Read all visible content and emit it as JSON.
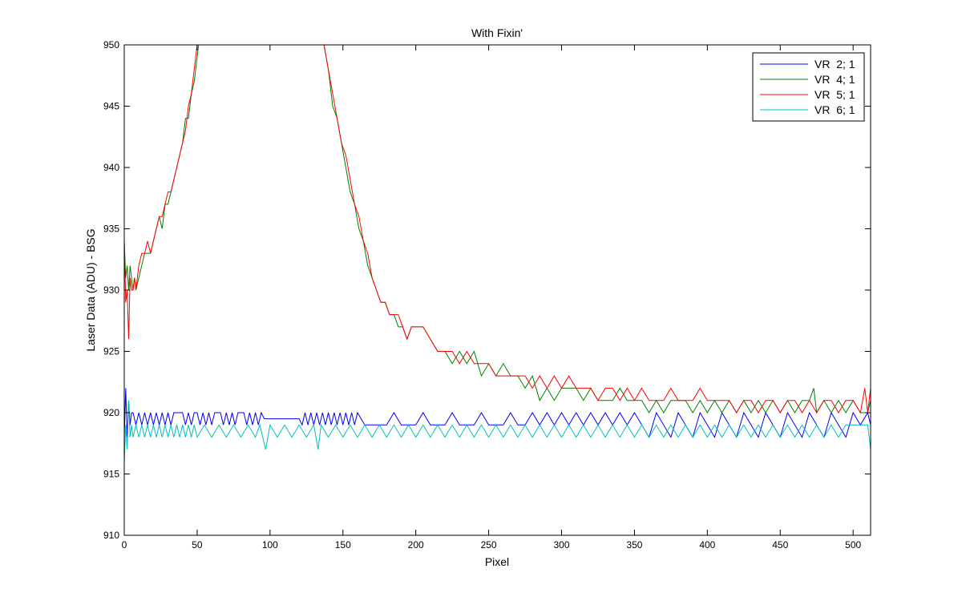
{
  "chart_data": {
    "type": "line",
    "title": "With Fixin'",
    "xlabel": "Pixel",
    "ylabel": "Laser Data (ADU) - BSG",
    "xlim": [
      0,
      512
    ],
    "ylim": [
      910,
      950
    ],
    "xticks": [
      0,
      50,
      100,
      150,
      200,
      250,
      300,
      350,
      400,
      450,
      500
    ],
    "yticks": [
      910,
      915,
      920,
      925,
      930,
      935,
      940,
      945,
      950
    ],
    "grid": false,
    "legend_position": "top-right",
    "series": [
      {
        "name": "VR  2; 1",
        "color": "#0000ff",
        "x": [
          0,
          1,
          2,
          3,
          4,
          5,
          6,
          8,
          10,
          12,
          14,
          16,
          18,
          20,
          22,
          24,
          26,
          28,
          30,
          32,
          34,
          36,
          38,
          40,
          42,
          44,
          46,
          48,
          50,
          52,
          54,
          56,
          58,
          60,
          62,
          64,
          66,
          68,
          70,
          72,
          74,
          76,
          78,
          80,
          82,
          84,
          86,
          88,
          90,
          92,
          94,
          96,
          100,
          105,
          110,
          115,
          120,
          122,
          124,
          126,
          128,
          130,
          132,
          134,
          136,
          138,
          140,
          142,
          144,
          146,
          148,
          150,
          152,
          154,
          156,
          158,
          160,
          165,
          170,
          175,
          180,
          185,
          190,
          195,
          200,
          205,
          210,
          215,
          220,
          225,
          230,
          235,
          240,
          245,
          250,
          255,
          260,
          265,
          270,
          275,
          280,
          285,
          290,
          295,
          300,
          305,
          310,
          315,
          320,
          325,
          330,
          335,
          340,
          345,
          350,
          355,
          360,
          365,
          370,
          375,
          380,
          385,
          390,
          395,
          400,
          405,
          410,
          415,
          420,
          425,
          430,
          435,
          440,
          445,
          450,
          455,
          460,
          465,
          470,
          475,
          480,
          485,
          490,
          495,
          500,
          505,
          510,
          512
        ],
        "y": [
          918,
          922,
          918,
          921,
          919,
          920,
          920,
          919,
          920,
          919,
          920,
          919,
          920,
          919,
          920,
          919,
          920,
          919,
          920,
          919,
          920,
          920,
          920,
          920,
          919,
          920,
          919,
          920,
          920,
          919,
          920,
          919,
          920,
          919,
          920,
          920,
          920,
          919,
          920,
          919,
          920,
          919,
          920,
          920,
          920,
          919,
          920,
          919,
          920,
          919,
          920,
          919.5,
          919.5,
          919.5,
          919.5,
          919.5,
          919.5,
          919,
          920,
          919,
          920,
          919,
          920,
          919,
          920,
          919,
          920,
          919,
          920,
          919,
          920,
          919,
          920,
          919,
          920,
          919,
          920,
          919,
          919,
          919,
          919,
          920,
          919,
          919,
          919,
          920,
          919,
          919,
          919,
          920,
          919,
          919,
          919,
          920,
          919,
          919,
          919,
          920,
          919,
          919,
          920,
          919,
          920,
          919,
          920,
          919,
          920,
          919,
          920,
          919,
          920,
          919,
          920,
          919,
          920,
          919,
          918,
          920,
          919,
          918,
          920,
          919,
          918,
          920,
          919,
          918,
          920,
          919,
          918,
          920,
          919,
          918,
          920,
          919,
          918,
          920,
          919,
          918,
          920,
          919,
          918,
          920,
          919,
          918,
          920,
          919,
          920,
          919
        ]
      },
      {
        "name": "VR  4; 1",
        "color": "#008000",
        "x": [
          0,
          1,
          2,
          3,
          4,
          5,
          6,
          7,
          8,
          10,
          12,
          14,
          16,
          18,
          20,
          22,
          24,
          26,
          28,
          30,
          32,
          34,
          36,
          38,
          40,
          42,
          44,
          46,
          48,
          50,
          51,
          137,
          140,
          143,
          146,
          149,
          152,
          155,
          158,
          161,
          164,
          167,
          170,
          173,
          176,
          179,
          182,
          185,
          188,
          191,
          194,
          197,
          200,
          205,
          210,
          215,
          220,
          225,
          230,
          235,
          240,
          245,
          250,
          255,
          260,
          265,
          270,
          275,
          280,
          285,
          290,
          295,
          300,
          305,
          310,
          315,
          320,
          325,
          330,
          335,
          340,
          345,
          350,
          355,
          360,
          365,
          370,
          375,
          380,
          385,
          390,
          395,
          400,
          405,
          410,
          415,
          420,
          425,
          430,
          435,
          440,
          445,
          450,
          455,
          460,
          465,
          470,
          473,
          475,
          480,
          485,
          490,
          495,
          500,
          505,
          510,
          512
        ],
        "y": [
          934,
          931,
          932,
          930,
          932,
          931,
          930,
          931,
          930,
          931,
          932,
          933,
          933,
          933,
          934,
          935,
          936,
          935,
          937,
          937,
          938,
          939,
          940,
          941,
          942,
          944,
          944,
          946,
          947,
          949,
          950,
          950,
          948,
          945,
          944,
          942,
          940,
          938,
          937,
          935,
          934,
          932,
          931,
          930,
          929,
          929,
          928,
          928,
          927,
          927,
          926,
          927,
          927,
          927,
          926,
          925,
          925,
          924,
          925,
          924,
          925,
          923,
          924,
          923,
          924,
          923,
          923,
          922,
          923,
          921,
          922,
          921,
          922,
          922,
          922,
          921,
          922,
          921,
          921,
          921,
          922,
          921,
          921,
          921,
          920,
          921,
          920,
          921,
          921,
          921,
          920,
          921,
          920,
          921,
          920,
          921,
          920,
          921,
          920,
          921,
          920,
          921,
          920,
          921,
          920,
          921,
          921,
          922,
          920,
          921,
          920,
          921,
          920,
          921,
          920,
          920,
          921
        ]
      },
      {
        "name": "VR  5; 1",
        "color": "#ff0000",
        "x": [
          0,
          1,
          2,
          3,
          4,
          5,
          6,
          7,
          8,
          10,
          12,
          14,
          16,
          18,
          20,
          22,
          24,
          26,
          28,
          30,
          32,
          34,
          36,
          38,
          40,
          42,
          44,
          46,
          48,
          50,
          51,
          137,
          140,
          143,
          146,
          149,
          152,
          155,
          158,
          161,
          164,
          167,
          170,
          173,
          176,
          179,
          182,
          185,
          188,
          191,
          194,
          197,
          200,
          205,
          210,
          215,
          220,
          225,
          230,
          235,
          240,
          245,
          250,
          255,
          260,
          265,
          270,
          275,
          280,
          285,
          290,
          295,
          300,
          305,
          310,
          315,
          320,
          325,
          330,
          335,
          340,
          345,
          350,
          355,
          360,
          365,
          370,
          375,
          380,
          385,
          390,
          395,
          400,
          405,
          410,
          415,
          420,
          425,
          430,
          435,
          440,
          445,
          450,
          455,
          460,
          465,
          470,
          475,
          480,
          485,
          490,
          495,
          500,
          505,
          508,
          510,
          512
        ],
        "y": [
          934,
          929,
          930,
          926,
          931,
          930,
          930,
          931,
          930,
          932,
          933,
          933,
          934,
          933,
          934,
          935,
          936,
          936,
          937,
          938,
          938,
          939,
          940,
          941,
          942,
          943,
          945,
          946,
          948,
          950,
          950,
          950,
          948,
          946,
          944,
          942,
          941,
          939,
          937,
          936,
          934,
          933,
          931,
          930,
          929,
          929,
          928,
          928,
          928,
          927,
          926,
          927,
          927,
          927,
          926,
          925,
          925,
          925,
          924,
          925,
          924,
          924,
          924,
          923,
          923,
          923,
          923,
          923,
          922,
          923,
          922,
          923,
          922,
          923,
          922,
          922,
          922,
          921,
          922,
          922,
          921,
          922,
          921,
          922,
          921,
          921,
          921,
          922,
          921,
          921,
          921,
          922,
          921,
          921,
          921,
          921,
          920,
          921,
          921,
          920,
          921,
          921,
          920,
          921,
          921,
          920,
          921,
          920,
          921,
          921,
          920,
          921,
          921,
          920,
          922,
          920,
          922
        ]
      },
      {
        "name": "VR  6; 1",
        "color": "#00bfbf",
        "x": [
          0,
          1,
          2,
          3,
          4,
          5,
          6,
          8,
          10,
          12,
          14,
          16,
          18,
          20,
          22,
          24,
          26,
          28,
          30,
          32,
          34,
          36,
          38,
          40,
          42,
          44,
          46,
          48,
          50,
          55,
          60,
          65,
          70,
          75,
          80,
          85,
          90,
          93,
          95,
          97,
          100,
          105,
          110,
          115,
          120,
          125,
          130,
          133,
          135,
          140,
          145,
          150,
          155,
          160,
          165,
          170,
          175,
          180,
          185,
          190,
          195,
          200,
          205,
          210,
          215,
          220,
          225,
          230,
          235,
          240,
          245,
          250,
          255,
          260,
          265,
          270,
          275,
          280,
          285,
          290,
          295,
          300,
          305,
          310,
          315,
          320,
          325,
          330,
          335,
          340,
          345,
          350,
          355,
          360,
          365,
          370,
          375,
          380,
          385,
          390,
          395,
          400,
          405,
          410,
          415,
          420,
          425,
          430,
          435,
          440,
          445,
          450,
          455,
          460,
          465,
          470,
          475,
          480,
          485,
          490,
          495,
          500,
          505,
          510,
          512
        ],
        "y": [
          916,
          919,
          917,
          921,
          918,
          919,
          918,
          919,
          918,
          919,
          918,
          919,
          918,
          919,
          918,
          919,
          918,
          919,
          918,
          919,
          918,
          919,
          918,
          919,
          918,
          919,
          918,
          919,
          918,
          919,
          918,
          919,
          918,
          919,
          918,
          919,
          918,
          919,
          918,
          917,
          919,
          918,
          919,
          918,
          919,
          918,
          919,
          917,
          919,
          918,
          919,
          918,
          919,
          918,
          919,
          918,
          919,
          918,
          919,
          918,
          919,
          918,
          919,
          918,
          919,
          918,
          919,
          918,
          919,
          918,
          919,
          918,
          919,
          918,
          919,
          918,
          919,
          918,
          919,
          918,
          919,
          918,
          919,
          918,
          919,
          918,
          919,
          918,
          919,
          918,
          919,
          918,
          919,
          918,
          919,
          918,
          919,
          918,
          919,
          918,
          919,
          918,
          919,
          918,
          919,
          918,
          919,
          918,
          919,
          918,
          919,
          918,
          919,
          918,
          919,
          918,
          919,
          918,
          919,
          918,
          919,
          919,
          919,
          919,
          917
        ]
      }
    ]
  }
}
